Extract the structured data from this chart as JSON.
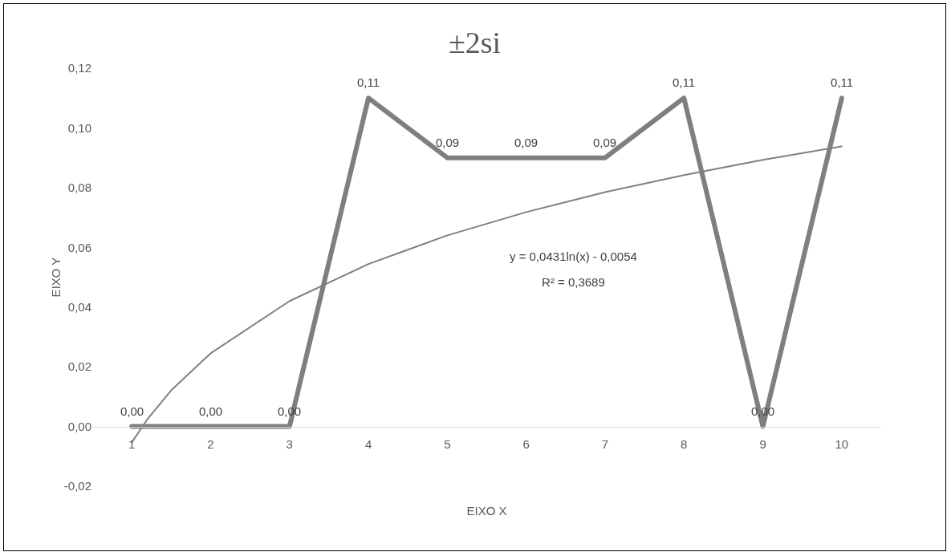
{
  "chart_data": {
    "type": "line",
    "title": "±2si",
    "xlabel": "EIXO X",
    "ylabel": "EIXO Y",
    "x": [
      1,
      2,
      3,
      4,
      5,
      6,
      7,
      8,
      9,
      10
    ],
    "xlim": [
      0.5,
      10.5
    ],
    "xticks": [
      1,
      2,
      3,
      4,
      5,
      6,
      7,
      8,
      9,
      10
    ],
    "ylim": [
      -0.02,
      0.12
    ],
    "yticks": [
      {
        "value": -0.02,
        "label": "-0,02"
      },
      {
        "value": 0,
        "label": "0,00"
      },
      {
        "value": 0.02,
        "label": "0,02"
      },
      {
        "value": 0.04,
        "label": "0,04"
      },
      {
        "value": 0.06,
        "label": "0,06"
      },
      {
        "value": 0.08,
        "label": "0,08"
      },
      {
        "value": 0.1,
        "label": "0,10"
      },
      {
        "value": 0.12,
        "label": "0,12"
      }
    ],
    "series": [
      {
        "color": "#7f7f7f",
        "values": [
          0,
          0,
          0,
          0.11,
          0.09,
          0.09,
          0.09,
          0.11,
          0,
          0.11
        ],
        "value_labels": [
          "0,00",
          "0,00",
          "0,00",
          "0,11",
          "0,09",
          "0,09",
          "0,09",
          "0,11",
          "0,00",
          "0,11"
        ]
      },
      {
        "type": "line",
        "color": "#808080",
        "x": [
          1,
          1.2,
          1.5,
          2,
          3,
          4,
          5,
          6,
          7,
          8,
          9,
          10
        ],
        "values": [
          -0.0054,
          0.0025,
          0.0121,
          0.0245,
          0.042,
          0.0544,
          0.064,
          0.0718,
          0.0785,
          0.0842,
          0.0893,
          0.0938
        ]
      }
    ],
    "annotations": [
      "y = 0,0431ln(x) - 0,0054",
      "R² = 0,3689"
    ],
    "grid": false,
    "marker": "none",
    "line_style": "solid"
  }
}
